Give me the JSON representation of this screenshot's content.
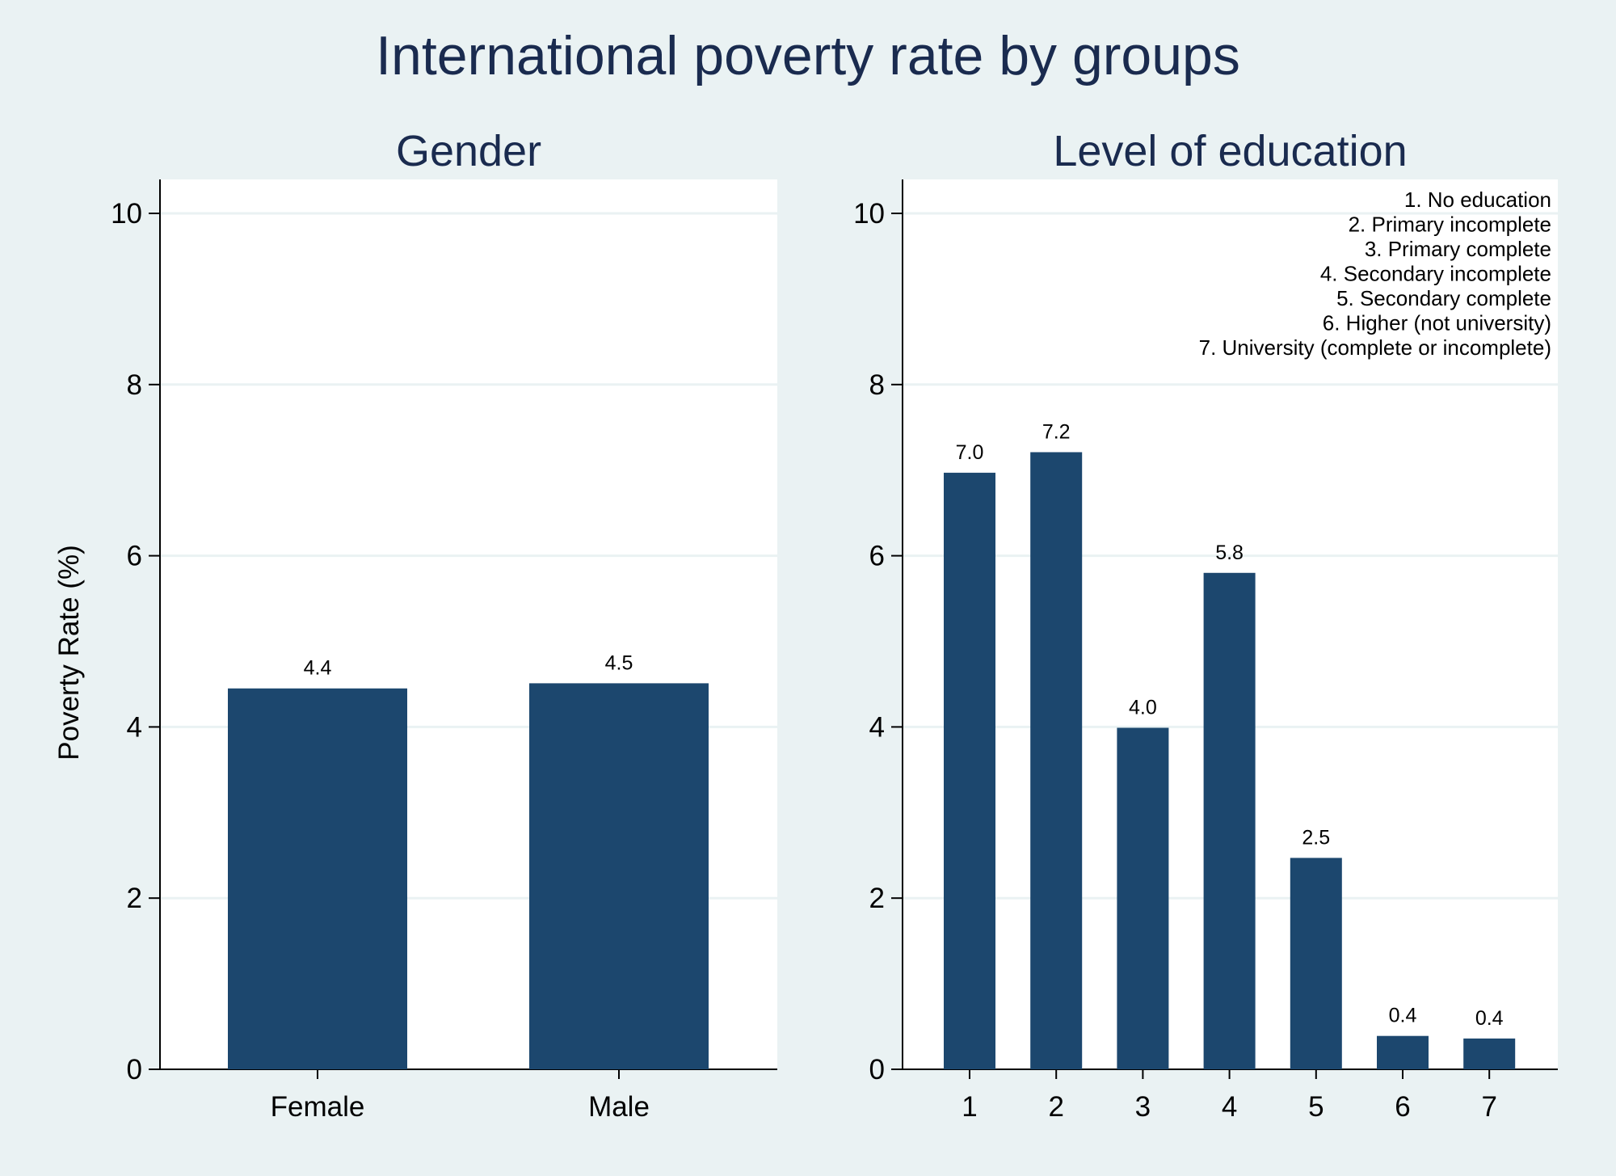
{
  "title": "International poverty rate by groups",
  "colors": {
    "background": "#eaf2f3",
    "plot_background": "#ffffff",
    "bar": "#1c476e",
    "grid": "#eaf2f3",
    "title": "#1a2b4f"
  },
  "chart_data": [
    {
      "type": "bar",
      "title": "Gender",
      "ylabel": "Poverty Rate (%)",
      "xlabel": "",
      "ylim": [
        0,
        10
      ],
      "yticks": [
        0,
        2,
        4,
        6,
        8,
        10
      ],
      "grid": true,
      "categories": [
        "Female",
        "Male"
      ],
      "values": [
        4.45,
        4.51
      ],
      "value_labels": [
        "4.4",
        "4.5"
      ]
    },
    {
      "type": "bar",
      "title": "Level of education",
      "ylabel": "",
      "xlabel": "",
      "ylim": [
        0,
        10
      ],
      "yticks": [
        0,
        2,
        4,
        6,
        8,
        10
      ],
      "grid": true,
      "categories": [
        "1",
        "2",
        "3",
        "4",
        "5",
        "6",
        "7"
      ],
      "values": [
        6.97,
        7.21,
        3.99,
        5.8,
        2.47,
        0.39,
        0.36
      ],
      "value_labels": [
        "7.0",
        "7.2",
        "4.0",
        "5.8",
        "2.5",
        "0.4",
        "0.4"
      ],
      "note_placement": "top-right",
      "note": [
        "1. No education",
        "2. Primary incomplete",
        "3. Primary complete",
        "4. Secondary incomplete",
        "5. Secondary complete",
        "6. Higher (not university)",
        "7. University (complete or incomplete)"
      ]
    }
  ]
}
